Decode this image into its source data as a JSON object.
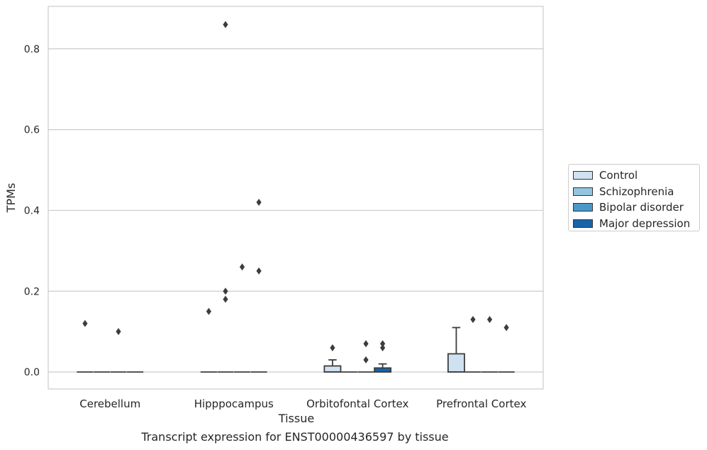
{
  "chart_data": {
    "type": "box",
    "title": "",
    "xlabel": "Tissue",
    "ylabel": "TPMs",
    "ylim": [
      -0.042,
      0.905
    ],
    "yticks": [
      0.0,
      0.2,
      0.4,
      0.6,
      0.8
    ],
    "ytick_labels": [
      "0.0",
      "0.2",
      "0.4",
      "0.6",
      "0.8"
    ],
    "grid": "horizontal",
    "legend_position": "right",
    "categories": [
      "Cerebellum",
      "Hipppocampus",
      "Orbitofontal Cortex",
      "Prefrontal Cortex"
    ],
    "series": [
      {
        "name": "Control",
        "color": "#d0e1f2",
        "boxes": [
          {
            "q1": 0,
            "median": 0,
            "q3": 0,
            "whisker_low": 0,
            "whisker_high": 0,
            "outliers": [
              0.12
            ]
          },
          {
            "q1": 0,
            "median": 0,
            "q3": 0,
            "whisker_low": 0,
            "whisker_high": 0,
            "outliers": [
              0.15
            ]
          },
          {
            "q1": 0,
            "median": 0,
            "q3": 0.015,
            "whisker_low": 0,
            "whisker_high": 0.03,
            "outliers": [
              0.06
            ]
          },
          {
            "q1": 0,
            "median": 0,
            "q3": 0.045,
            "whisker_low": 0,
            "whisker_high": 0.11,
            "outliers": []
          }
        ]
      },
      {
        "name": "Schizophrenia",
        "color": "#94c4df",
        "boxes": [
          {
            "q1": 0,
            "median": 0,
            "q3": 0,
            "whisker_low": 0,
            "whisker_high": 0,
            "outliers": []
          },
          {
            "q1": 0,
            "median": 0,
            "q3": 0,
            "whisker_low": 0,
            "whisker_high": 0,
            "outliers": [
              0.86,
              0.2,
              0.18
            ]
          },
          {
            "q1": 0,
            "median": 0,
            "q3": 0,
            "whisker_low": 0,
            "whisker_high": 0,
            "outliers": []
          },
          {
            "q1": 0,
            "median": 0,
            "q3": 0,
            "whisker_low": 0,
            "whisker_high": 0,
            "outliers": [
              0.13
            ]
          }
        ]
      },
      {
        "name": "Bipolar disorder",
        "color": "#4a98c9",
        "boxes": [
          {
            "q1": 0,
            "median": 0,
            "q3": 0,
            "whisker_low": 0,
            "whisker_high": 0,
            "outliers": [
              0.1
            ]
          },
          {
            "q1": 0,
            "median": 0,
            "q3": 0,
            "whisker_low": 0,
            "whisker_high": 0,
            "outliers": [
              0.26
            ]
          },
          {
            "q1": 0,
            "median": 0,
            "q3": 0,
            "whisker_low": 0,
            "whisker_high": 0,
            "outliers": [
              0.07,
              0.03
            ]
          },
          {
            "q1": 0,
            "median": 0,
            "q3": 0,
            "whisker_low": 0,
            "whisker_high": 0,
            "outliers": [
              0.13
            ]
          }
        ]
      },
      {
        "name": "Major depression",
        "color": "#1764ab",
        "boxes": [
          {
            "q1": 0,
            "median": 0,
            "q3": 0,
            "whisker_low": 0,
            "whisker_high": 0,
            "outliers": []
          },
          {
            "q1": 0,
            "median": 0,
            "q3": 0,
            "whisker_low": 0,
            "whisker_high": 0,
            "outliers": [
              0.42,
              0.25
            ]
          },
          {
            "q1": 0,
            "median": 0,
            "q3": 0.01,
            "whisker_low": 0,
            "whisker_high": 0.02,
            "outliers": [
              0.07,
              0.06
            ]
          },
          {
            "q1": 0,
            "median": 0,
            "q3": 0,
            "whisker_low": 0,
            "whisker_high": 0,
            "outliers": [
              0.11
            ]
          }
        ]
      }
    ]
  },
  "caption": "Transcript expression for ENST00000436597 by tissue"
}
